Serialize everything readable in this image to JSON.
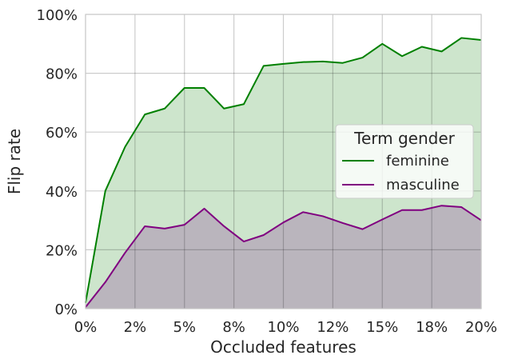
{
  "chart_data": {
    "type": "area",
    "xlabel": "Occluded features",
    "ylabel": "Flip rate",
    "xlim": [
      0,
      0.2
    ],
    "ylim": [
      0,
      1.0
    ],
    "x_ticks": [
      {
        "value": 0.0,
        "label": "0%"
      },
      {
        "value": 0.025,
        "label": "2%"
      },
      {
        "value": 0.05,
        "label": "5%"
      },
      {
        "value": 0.075,
        "label": "8%"
      },
      {
        "value": 0.1,
        "label": "10%"
      },
      {
        "value": 0.125,
        "label": "12%"
      },
      {
        "value": 0.15,
        "label": "15%"
      },
      {
        "value": 0.175,
        "label": "18%"
      },
      {
        "value": 0.2,
        "label": "20%"
      }
    ],
    "y_ticks": [
      {
        "value": 0.0,
        "label": "0%"
      },
      {
        "value": 0.2,
        "label": "20%"
      },
      {
        "value": 0.4,
        "label": "40%"
      },
      {
        "value": 0.6,
        "label": "60%"
      },
      {
        "value": 0.8,
        "label": "80%"
      },
      {
        "value": 1.0,
        "label": "100%"
      }
    ],
    "grid": true,
    "legend": {
      "title": "Term gender",
      "placement": "center-right"
    },
    "x": [
      0.0,
      0.01,
      0.02,
      0.03,
      0.04,
      0.05,
      0.06,
      0.07,
      0.08,
      0.09,
      0.1,
      0.11,
      0.12,
      0.13,
      0.14,
      0.15,
      0.16,
      0.17,
      0.18,
      0.19,
      0.2
    ],
    "series": [
      {
        "name": "feminine",
        "color": "#008000",
        "fill": "#cde5cc",
        "values": [
          0.02,
          0.4,
          0.55,
          0.66,
          0.68,
          0.75,
          0.75,
          0.68,
          0.695,
          0.825,
          0.832,
          0.838,
          0.84,
          0.835,
          0.853,
          0.9,
          0.858,
          0.89,
          0.874,
          0.92,
          0.913
        ]
      },
      {
        "name": "masculine",
        "color": "#800080",
        "fill": "#bab5bd",
        "values": [
          0.005,
          0.09,
          0.19,
          0.28,
          0.272,
          0.285,
          0.34,
          0.28,
          0.228,
          0.25,
          0.293,
          0.328,
          0.314,
          0.291,
          0.27,
          0.303,
          0.335,
          0.335,
          0.35,
          0.345,
          0.3
        ]
      }
    ]
  }
}
